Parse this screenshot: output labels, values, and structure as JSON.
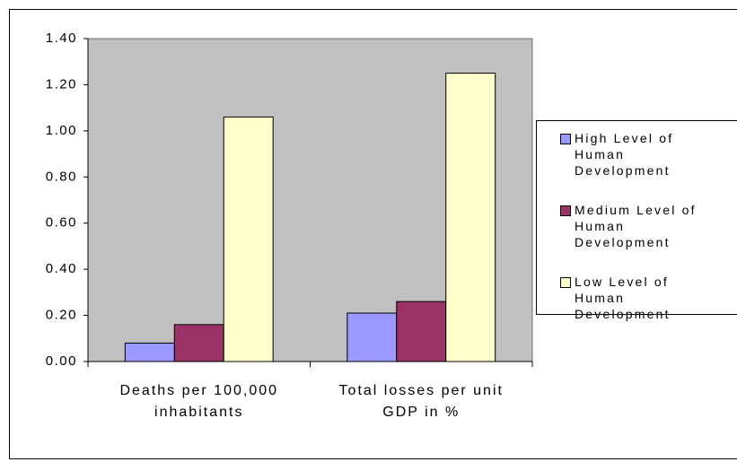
{
  "chart_data": {
    "type": "bar",
    "categories": [
      "Deaths per 100,000 inhabitants",
      "Total losses per unit GDP in %"
    ],
    "series": [
      {
        "name": "High Level of Human Development",
        "color": "#9999ff",
        "values": [
          0.08,
          0.21
        ]
      },
      {
        "name": "Medium Level of Human Development",
        "color": "#993366",
        "values": [
          0.16,
          0.26
        ]
      },
      {
        "name": "Low Level of Human Development",
        "color": "#ffffcc",
        "values": [
          1.06,
          1.25
        ]
      }
    ],
    "ylim": [
      0,
      1.4
    ],
    "yticks": [
      {
        "value": 0,
        "label": "0.00"
      },
      {
        "value": 0.2,
        "label": "0.20"
      },
      {
        "value": 0.4,
        "label": "0.40"
      },
      {
        "value": 0.6,
        "label": "0.60"
      },
      {
        "value": 0.8,
        "label": "0.80"
      },
      {
        "value": 1.0,
        "label": "1.00"
      },
      {
        "value": 1.2,
        "label": "1.20"
      },
      {
        "value": 1.4,
        "label": "1.40"
      }
    ],
    "plot_background": "#c0c0c0",
    "legend": "right"
  }
}
